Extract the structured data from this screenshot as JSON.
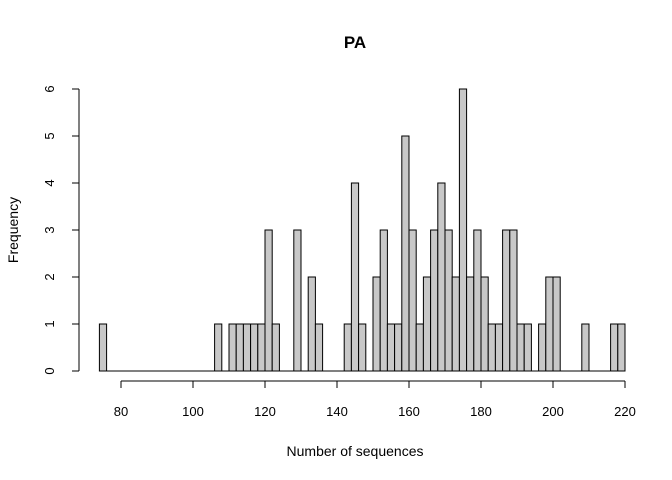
{
  "chart_data": {
    "type": "bar",
    "title": "PA",
    "xlabel": "Number of sequences",
    "ylabel": "Frequency",
    "bin_width": 2,
    "bin_start": 74,
    "values": [
      1,
      0,
      0,
      0,
      0,
      0,
      0,
      0,
      0,
      0,
      0,
      0,
      0,
      0,
      0,
      0,
      1,
      0,
      1,
      1,
      1,
      1,
      1,
      3,
      1,
      0,
      0,
      3,
      0,
      2,
      1,
      0,
      0,
      0,
      1,
      4,
      1,
      0,
      2,
      3,
      1,
      1,
      5,
      3,
      1,
      2,
      3,
      4,
      3,
      2,
      6,
      2,
      3,
      2,
      1,
      1,
      3,
      3,
      1,
      1,
      0,
      1,
      2,
      2,
      0,
      0,
      0,
      1,
      0,
      0,
      0,
      1,
      1
    ],
    "xticks": [
      80,
      100,
      120,
      140,
      160,
      180,
      200,
      220
    ],
    "yticks": [
      0,
      1,
      2,
      3,
      4,
      5,
      6
    ],
    "xlim": [
      74,
      220
    ],
    "ylim": [
      0,
      6
    ],
    "grid": false,
    "bar_color": "#c8c8c8"
  }
}
